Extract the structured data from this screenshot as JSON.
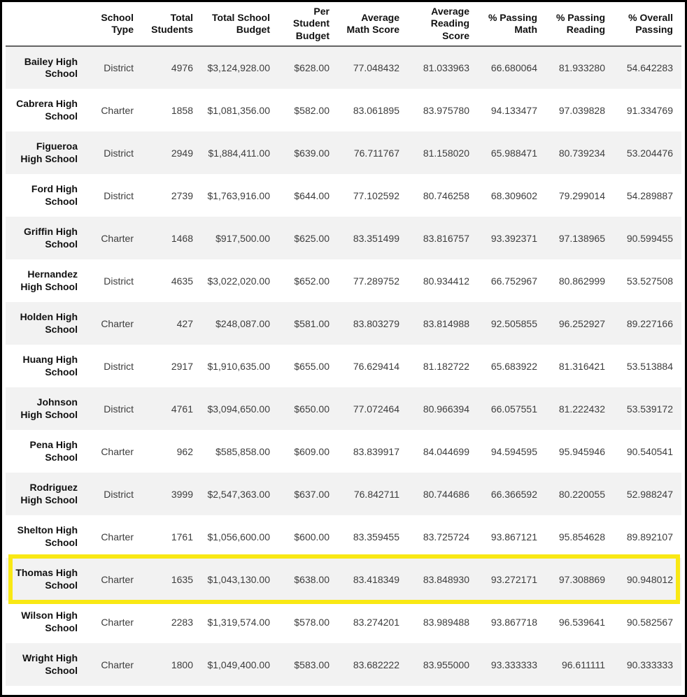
{
  "chart_data": {
    "type": "table",
    "index_label": "",
    "columns": [
      "School Type",
      "Total Students",
      "Total School Budget",
      "Per Student Budget",
      "Average Math Score",
      "Average Reading Score",
      "% Passing Math",
      "% Passing Reading",
      "% Overall Passing"
    ],
    "rows": [
      {
        "school": "Bailey High School",
        "school_type": "District",
        "total_students": "4976",
        "total_school_budget": "$3,124,928.00",
        "per_student_budget": "$628.00",
        "avg_math_score": "77.048432",
        "avg_reading_score": "81.033963",
        "pct_passing_math": "66.680064",
        "pct_passing_reading": "81.933280",
        "pct_overall_passing": "54.642283",
        "highlighted": false
      },
      {
        "school": "Cabrera High School",
        "school_type": "Charter",
        "total_students": "1858",
        "total_school_budget": "$1,081,356.00",
        "per_student_budget": "$582.00",
        "avg_math_score": "83.061895",
        "avg_reading_score": "83.975780",
        "pct_passing_math": "94.133477",
        "pct_passing_reading": "97.039828",
        "pct_overall_passing": "91.334769",
        "highlighted": false
      },
      {
        "school": "Figueroa High School",
        "school_type": "District",
        "total_students": "2949",
        "total_school_budget": "$1,884,411.00",
        "per_student_budget": "$639.00",
        "avg_math_score": "76.711767",
        "avg_reading_score": "81.158020",
        "pct_passing_math": "65.988471",
        "pct_passing_reading": "80.739234",
        "pct_overall_passing": "53.204476",
        "highlighted": false
      },
      {
        "school": "Ford High School",
        "school_type": "District",
        "total_students": "2739",
        "total_school_budget": "$1,763,916.00",
        "per_student_budget": "$644.00",
        "avg_math_score": "77.102592",
        "avg_reading_score": "80.746258",
        "pct_passing_math": "68.309602",
        "pct_passing_reading": "79.299014",
        "pct_overall_passing": "54.289887",
        "highlighted": false
      },
      {
        "school": "Griffin High School",
        "school_type": "Charter",
        "total_students": "1468",
        "total_school_budget": "$917,500.00",
        "per_student_budget": "$625.00",
        "avg_math_score": "83.351499",
        "avg_reading_score": "83.816757",
        "pct_passing_math": "93.392371",
        "pct_passing_reading": "97.138965",
        "pct_overall_passing": "90.599455",
        "highlighted": false
      },
      {
        "school": "Hernandez High School",
        "school_type": "District",
        "total_students": "4635",
        "total_school_budget": "$3,022,020.00",
        "per_student_budget": "$652.00",
        "avg_math_score": "77.289752",
        "avg_reading_score": "80.934412",
        "pct_passing_math": "66.752967",
        "pct_passing_reading": "80.862999",
        "pct_overall_passing": "53.527508",
        "highlighted": false
      },
      {
        "school": "Holden High School",
        "school_type": "Charter",
        "total_students": "427",
        "total_school_budget": "$248,087.00",
        "per_student_budget": "$581.00",
        "avg_math_score": "83.803279",
        "avg_reading_score": "83.814988",
        "pct_passing_math": "92.505855",
        "pct_passing_reading": "96.252927",
        "pct_overall_passing": "89.227166",
        "highlighted": false
      },
      {
        "school": "Huang High School",
        "school_type": "District",
        "total_students": "2917",
        "total_school_budget": "$1,910,635.00",
        "per_student_budget": "$655.00",
        "avg_math_score": "76.629414",
        "avg_reading_score": "81.182722",
        "pct_passing_math": "65.683922",
        "pct_passing_reading": "81.316421",
        "pct_overall_passing": "53.513884",
        "highlighted": false
      },
      {
        "school": "Johnson High School",
        "school_type": "District",
        "total_students": "4761",
        "total_school_budget": "$3,094,650.00",
        "per_student_budget": "$650.00",
        "avg_math_score": "77.072464",
        "avg_reading_score": "80.966394",
        "pct_passing_math": "66.057551",
        "pct_passing_reading": "81.222432",
        "pct_overall_passing": "53.539172",
        "highlighted": false
      },
      {
        "school": "Pena High School",
        "school_type": "Charter",
        "total_students": "962",
        "total_school_budget": "$585,858.00",
        "per_student_budget": "$609.00",
        "avg_math_score": "83.839917",
        "avg_reading_score": "84.044699",
        "pct_passing_math": "94.594595",
        "pct_passing_reading": "95.945946",
        "pct_overall_passing": "90.540541",
        "highlighted": false
      },
      {
        "school": "Rodriguez High School",
        "school_type": "District",
        "total_students": "3999",
        "total_school_budget": "$2,547,363.00",
        "per_student_budget": "$637.00",
        "avg_math_score": "76.842711",
        "avg_reading_score": "80.744686",
        "pct_passing_math": "66.366592",
        "pct_passing_reading": "80.220055",
        "pct_overall_passing": "52.988247",
        "highlighted": false
      },
      {
        "school": "Shelton High School",
        "school_type": "Charter",
        "total_students": "1761",
        "total_school_budget": "$1,056,600.00",
        "per_student_budget": "$600.00",
        "avg_math_score": "83.359455",
        "avg_reading_score": "83.725724",
        "pct_passing_math": "93.867121",
        "pct_passing_reading": "95.854628",
        "pct_overall_passing": "89.892107",
        "highlighted": false
      },
      {
        "school": "Thomas High School",
        "school_type": "Charter",
        "total_students": "1635",
        "total_school_budget": "$1,043,130.00",
        "per_student_budget": "$638.00",
        "avg_math_score": "83.418349",
        "avg_reading_score": "83.848930",
        "pct_passing_math": "93.272171",
        "pct_passing_reading": "97.308869",
        "pct_overall_passing": "90.948012",
        "highlighted": true
      },
      {
        "school": "Wilson High School",
        "school_type": "Charter",
        "total_students": "2283",
        "total_school_budget": "$1,319,574.00",
        "per_student_budget": "$578.00",
        "avg_math_score": "83.274201",
        "avg_reading_score": "83.989488",
        "pct_passing_math": "93.867718",
        "pct_passing_reading": "96.539641",
        "pct_overall_passing": "90.582567",
        "highlighted": false
      },
      {
        "school": "Wright High School",
        "school_type": "Charter",
        "total_students": "1800",
        "total_school_budget": "$1,049,400.00",
        "per_student_budget": "$583.00",
        "avg_math_score": "83.682222",
        "avg_reading_score": "83.955000",
        "pct_passing_math": "93.333333",
        "pct_passing_reading": "96.611111",
        "pct_overall_passing": "90.333333",
        "highlighted": false
      }
    ],
    "highlighted_row": "Thomas High School",
    "layout": {
      "grid": "off",
      "stripes": "odd-rows"
    }
  },
  "style": {
    "highlight_border_color": "#f9e814",
    "stripe_color": "#f2f2f2",
    "header_rule_color": "#646464",
    "frame_border_color": "#000000",
    "header_text_color": "#111111",
    "cell_text_color": "#3d3d3d"
  }
}
